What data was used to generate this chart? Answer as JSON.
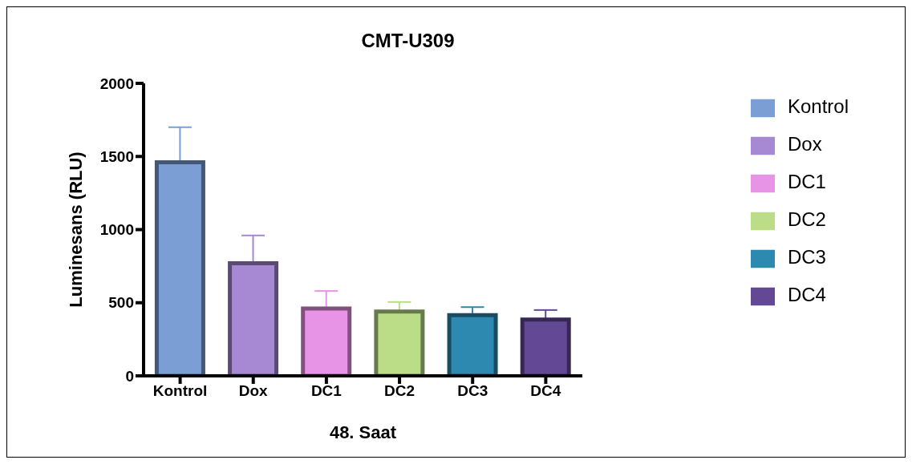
{
  "chart_data": {
    "type": "bar",
    "title": "CMT-U309",
    "xlabel": "48. Saat",
    "ylabel": "Luminesans (RLU)",
    "categories": [
      "Kontrol",
      "Dox",
      "DC1",
      "DC2",
      "DC3",
      "DC4"
    ],
    "series": [
      {
        "name": "Kontrol",
        "color": "#7b9fd4",
        "values": [
          1460,
          null,
          null,
          null,
          null,
          null
        ],
        "errors": [
          [
            1460,
            1700
          ],
          null,
          null,
          null,
          null,
          null
        ]
      },
      {
        "name": "Dox",
        "color": "#a689d2",
        "values": [
          null,
          770,
          null,
          null,
          null,
          null
        ],
        "errors": [
          null,
          [
            770,
            960
          ],
          null,
          null,
          null,
          null
        ]
      },
      {
        "name": "DC1",
        "color": "#e894e6",
        "values": [
          null,
          null,
          460,
          null,
          null,
          null
        ],
        "errors": [
          null,
          null,
          [
            460,
            580
          ],
          null,
          null,
          null
        ]
      },
      {
        "name": "DC2",
        "color": "#bbdd88",
        "values": [
          null,
          null,
          null,
          440,
          null,
          null
        ],
        "errors": [
          null,
          null,
          null,
          [
            440,
            505
          ],
          null,
          null
        ]
      },
      {
        "name": "DC3",
        "color": "#2d89b0",
        "values": [
          null,
          null,
          null,
          null,
          415,
          null
        ],
        "errors": [
          null,
          null,
          null,
          null,
          [
            415,
            470
          ],
          null
        ]
      },
      {
        "name": "DC4",
        "color": "#634896",
        "values": [
          null,
          null,
          null,
          null,
          null,
          385
        ],
        "errors": [
          null,
          null,
          null,
          null,
          null,
          [
            385,
            450
          ]
        ]
      }
    ],
    "ylim": [
      0,
      2000
    ],
    "yticks": [
      0,
      500,
      1000,
      1500,
      2000
    ],
    "grid": false,
    "legend": "right"
  }
}
